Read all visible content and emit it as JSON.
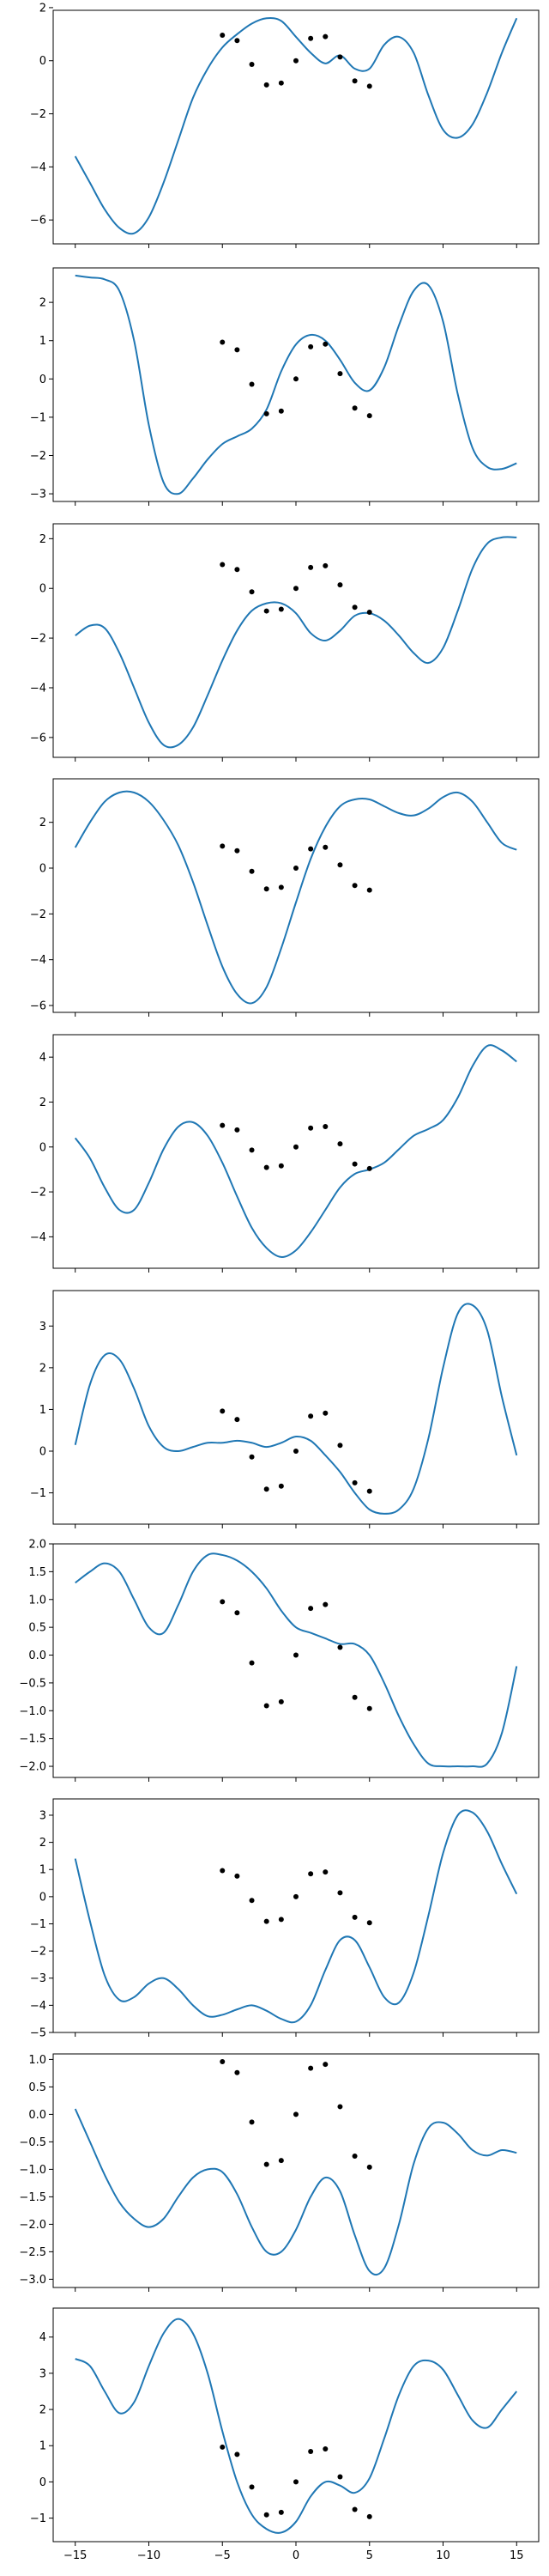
{
  "colors": {
    "curve": "#1f77b4",
    "points": "#000000"
  },
  "chart_data": {
    "type": "line",
    "layout": "vertical-stack",
    "shared_x": true,
    "xlim": [
      -16.5,
      16.5
    ],
    "x_ticks": [
      -15,
      -10,
      -5,
      0,
      5,
      10,
      15
    ],
    "x_tick_labels": [
      "−15",
      "−10",
      "−5",
      "0",
      "5",
      "10",
      "15"
    ],
    "grid": false,
    "legend": "none",
    "observed_points": {
      "x": [
        -5,
        -4,
        -3,
        -2,
        -1,
        0,
        1,
        2,
        3,
        4,
        5
      ],
      "y": [
        0.96,
        0.76,
        -0.14,
        -0.91,
        -0.84,
        0.0,
        0.84,
        0.91,
        0.14,
        -0.76,
        -0.96
      ]
    },
    "panels": [
      {
        "ylim": [
          -6.9,
          1.9
        ],
        "y_ticks": [
          -6,
          -4,
          -2,
          0,
          2
        ],
        "y_tick_labels": [
          "−6",
          "−4",
          "−2",
          "0",
          "2"
        ],
        "curve": {
          "x": [
            -15,
            -14,
            -13,
            -12,
            -11,
            -10,
            -9,
            -8,
            -7,
            -6,
            -5,
            -4,
            -3,
            -2,
            -1,
            0,
            1,
            2,
            3,
            4,
            5,
            6,
            7,
            8,
            9,
            10,
            11,
            12,
            13,
            14,
            15
          ],
          "y": [
            -3.6,
            -4.6,
            -5.6,
            -6.3,
            -6.5,
            -5.9,
            -4.6,
            -3.0,
            -1.4,
            -0.3,
            0.5,
            1.0,
            1.4,
            1.6,
            1.5,
            0.9,
            0.3,
            -0.1,
            0.2,
            -0.3,
            -0.3,
            0.6,
            0.9,
            0.3,
            -1.3,
            -2.6,
            -2.9,
            -2.4,
            -1.2,
            0.3,
            1.6
          ]
        }
      },
      {
        "ylim": [
          -3.2,
          2.9
        ],
        "y_ticks": [
          -3,
          -2,
          -1,
          0,
          1,
          2
        ],
        "y_tick_labels": [
          "−3",
          "−2",
          "−1",
          "0",
          "1",
          "2"
        ],
        "curve": {
          "x": [
            -15,
            -14,
            -13,
            -12,
            -11,
            -10,
            -9,
            -8,
            -7,
            -6,
            -5,
            -4,
            -3,
            -2,
            -1,
            0,
            1,
            2,
            3,
            4,
            5,
            6,
            7,
            8,
            9,
            10,
            11,
            12,
            13,
            14,
            15
          ],
          "y": [
            2.7,
            2.65,
            2.6,
            2.3,
            1.0,
            -1.2,
            -2.7,
            -3.0,
            -2.6,
            -2.1,
            -1.7,
            -1.5,
            -1.3,
            -0.8,
            0.2,
            0.9,
            1.15,
            1.0,
            0.5,
            -0.1,
            -0.3,
            0.3,
            1.4,
            2.3,
            2.45,
            1.5,
            -0.4,
            -1.8,
            -2.3,
            -2.35,
            -2.2
          ]
        }
      },
      {
        "ylim": [
          -6.8,
          2.6
        ],
        "y_ticks": [
          -6,
          -4,
          -2,
          0,
          2
        ],
        "y_tick_labels": [
          "−6",
          "−4",
          "−2",
          "0",
          "2"
        ],
        "curve": {
          "x": [
            -15,
            -14,
            -13,
            -12,
            -11,
            -10,
            -9,
            -8,
            -7,
            -6,
            -5,
            -4,
            -3,
            -2,
            -1,
            0,
            1,
            2,
            3,
            4,
            5,
            6,
            7,
            8,
            9,
            10,
            11,
            12,
            13,
            14,
            15
          ],
          "y": [
            -1.9,
            -1.5,
            -1.6,
            -2.6,
            -4.0,
            -5.4,
            -6.3,
            -6.3,
            -5.6,
            -4.3,
            -2.9,
            -1.7,
            -0.9,
            -0.6,
            -0.6,
            -1.0,
            -1.8,
            -2.1,
            -1.7,
            -1.1,
            -1.0,
            -1.3,
            -1.9,
            -2.6,
            -3.0,
            -2.4,
            -0.9,
            0.8,
            1.8,
            2.05,
            2.05
          ]
        }
      },
      {
        "ylim": [
          -6.3,
          3.9
        ],
        "y_ticks": [
          -6,
          -4,
          -2,
          0,
          2
        ],
        "y_tick_labels": [
          "−6",
          "−4",
          "−2",
          "0",
          "2"
        ],
        "curve": {
          "x": [
            -15,
            -14,
            -13,
            -12,
            -11,
            -10,
            -9,
            -8,
            -7,
            -6,
            -5,
            -4,
            -3,
            -2,
            -1,
            0,
            1,
            2,
            3,
            4,
            5,
            6,
            7,
            8,
            9,
            10,
            11,
            12,
            13,
            14,
            15
          ],
          "y": [
            0.9,
            2.0,
            2.9,
            3.3,
            3.3,
            2.9,
            2.1,
            1.0,
            -0.6,
            -2.5,
            -4.3,
            -5.5,
            -5.9,
            -5.2,
            -3.5,
            -1.5,
            0.4,
            1.8,
            2.7,
            3.0,
            3.0,
            2.7,
            2.4,
            2.3,
            2.6,
            3.1,
            3.3,
            2.9,
            2.0,
            1.1,
            0.8
          ]
        }
      },
      {
        "ylim": [
          -5.4,
          5.0
        ],
        "y_ticks": [
          -4,
          -2,
          0,
          2,
          4
        ],
        "y_tick_labels": [
          "−4",
          "−2",
          "0",
          "2",
          "4"
        ],
        "curve": {
          "x": [
            -15,
            -14,
            -13,
            -12,
            -11,
            -10,
            -9,
            -8,
            -7,
            -6,
            -5,
            -4,
            -3,
            -2,
            -1,
            0,
            1,
            2,
            3,
            4,
            5,
            6,
            7,
            8,
            9,
            10,
            11,
            12,
            13,
            14,
            15
          ],
          "y": [
            0.4,
            -0.5,
            -1.8,
            -2.8,
            -2.8,
            -1.6,
            -0.1,
            0.9,
            1.1,
            0.5,
            -0.7,
            -2.2,
            -3.6,
            -4.5,
            -4.9,
            -4.6,
            -3.8,
            -2.8,
            -1.8,
            -1.2,
            -1.0,
            -0.7,
            -0.1,
            0.5,
            0.8,
            1.2,
            2.2,
            3.6,
            4.5,
            4.3,
            3.8
          ]
        }
      },
      {
        "ylim": [
          -1.75,
          3.85
        ],
        "y_ticks": [
          -1,
          0,
          1,
          2,
          3
        ],
        "y_tick_labels": [
          "−1",
          "0",
          "1",
          "2",
          "3"
        ],
        "curve": {
          "x": [
            -15,
            -14,
            -13,
            -12,
            -11,
            -10,
            -9,
            -8,
            -7,
            -6,
            -5,
            -4,
            -3,
            -2,
            -1,
            0,
            1,
            2,
            3,
            4,
            5,
            6,
            7,
            8,
            9,
            10,
            11,
            12,
            13,
            14,
            15
          ],
          "y": [
            0.15,
            1.6,
            2.3,
            2.2,
            1.5,
            0.6,
            0.1,
            0.0,
            0.1,
            0.2,
            0.2,
            0.25,
            0.2,
            0.1,
            0.2,
            0.35,
            0.25,
            -0.1,
            -0.5,
            -1.0,
            -1.4,
            -1.5,
            -1.4,
            -0.9,
            0.3,
            2.0,
            3.3,
            3.5,
            2.9,
            1.3,
            -0.1
          ]
        }
      },
      {
        "ylim": [
          -2.2,
          2.0
        ],
        "y_ticks": [
          -2.0,
          -1.5,
          -1.0,
          -0.5,
          0.0,
          0.5,
          1.0,
          1.5,
          2.0
        ],
        "y_tick_labels": [
          "−2.0",
          "−1.5",
          "−1.0",
          "−0.5",
          "0.0",
          "0.5",
          "1.0",
          "1.5",
          "2.0"
        ],
        "curve": {
          "x": [
            -15,
            -14,
            -13,
            -12,
            -11,
            -10,
            -9,
            -8,
            -7,
            -6,
            -5,
            -4,
            -3,
            -2,
            -1,
            0,
            1,
            2,
            3,
            4,
            5,
            6,
            7,
            8,
            9,
            10,
            11,
            12,
            13,
            14,
            15
          ],
          "y": [
            1.3,
            1.5,
            1.65,
            1.5,
            1.0,
            0.5,
            0.4,
            0.9,
            1.5,
            1.8,
            1.8,
            1.7,
            1.5,
            1.2,
            0.8,
            0.5,
            0.4,
            0.3,
            0.2,
            0.2,
            0.0,
            -0.5,
            -1.1,
            -1.6,
            -1.95,
            -2.0,
            -2.0,
            -2.0,
            -1.95,
            -1.4,
            -0.2
          ]
        }
      },
      {
        "ylim": [
          -5.0,
          3.6
        ],
        "y_ticks": [
          -5,
          -4,
          -3,
          -2,
          -1,
          0,
          1,
          2,
          3
        ],
        "y_tick_labels": [
          "−5",
          "−4",
          "−3",
          "−2",
          "−1",
          "0",
          "1",
          "2",
          "3"
        ],
        "curve": {
          "x": [
            -15,
            -14,
            -13,
            -12,
            -11,
            -10,
            -9,
            -8,
            -7,
            -6,
            -5,
            -4,
            -3,
            -2,
            -1,
            0,
            1,
            2,
            3,
            4,
            5,
            6,
            7,
            8,
            9,
            10,
            11,
            12,
            13,
            14,
            15
          ],
          "y": [
            1.4,
            -0.9,
            -2.9,
            -3.8,
            -3.7,
            -3.2,
            -3.0,
            -3.4,
            -4.0,
            -4.4,
            -4.35,
            -4.15,
            -4.0,
            -4.2,
            -4.5,
            -4.6,
            -4.0,
            -2.7,
            -1.6,
            -1.6,
            -2.6,
            -3.7,
            -3.9,
            -2.8,
            -0.7,
            1.6,
            3.0,
            3.1,
            2.4,
            1.2,
            0.1
          ]
        }
      },
      {
        "ylim": [
          -3.15,
          1.1
        ],
        "y_ticks": [
          -3.0,
          -2.5,
          -2.0,
          -1.5,
          -1.0,
          -0.5,
          0.0,
          0.5,
          1.0
        ],
        "y_tick_labels": [
          "−3.0",
          "−2.5",
          "−2.0",
          "−1.5",
          "−1.0",
          "−0.5",
          "0.0",
          "0.5",
          "1.0"
        ],
        "curve": {
          "x": [
            -15,
            -14,
            -13,
            -12,
            -11,
            -10,
            -9,
            -8,
            -7,
            -6,
            -5,
            -4,
            -3,
            -2,
            -1,
            0,
            1,
            2,
            3,
            4,
            5,
            6,
            7,
            8,
            9,
            10,
            11,
            12,
            13,
            14,
            15
          ],
          "y": [
            0.1,
            -0.5,
            -1.1,
            -1.6,
            -1.9,
            -2.05,
            -1.9,
            -1.5,
            -1.15,
            -1.0,
            -1.05,
            -1.45,
            -2.05,
            -2.5,
            -2.5,
            -2.1,
            -1.5,
            -1.15,
            -1.4,
            -2.2,
            -2.85,
            -2.8,
            -2.0,
            -0.9,
            -0.25,
            -0.15,
            -0.35,
            -0.65,
            -0.75,
            -0.65,
            -0.7
          ]
        }
      },
      {
        "ylim": [
          -1.65,
          4.8
        ],
        "y_ticks": [
          -1,
          0,
          1,
          2,
          3,
          4
        ],
        "y_tick_labels": [
          "−1",
          "0",
          "1",
          "2",
          "3",
          "4"
        ],
        "curve": {
          "x": [
            -15,
            -14,
            -13,
            -12,
            -11,
            -10,
            -9,
            -8,
            -7,
            -6,
            -5,
            -4,
            -3,
            -2,
            -1,
            0,
            1,
            2,
            3,
            4,
            5,
            6,
            7,
            8,
            9,
            10,
            11,
            12,
            13,
            14,
            15
          ],
          "y": [
            3.4,
            3.2,
            2.5,
            1.9,
            2.2,
            3.2,
            4.1,
            4.5,
            4.1,
            3.0,
            1.4,
            0.0,
            -0.9,
            -1.3,
            -1.4,
            -1.1,
            -0.4,
            0.0,
            -0.1,
            -0.3,
            0.1,
            1.2,
            2.4,
            3.2,
            3.35,
            3.1,
            2.4,
            1.7,
            1.5,
            2.0,
            2.5
          ]
        }
      }
    ]
  }
}
